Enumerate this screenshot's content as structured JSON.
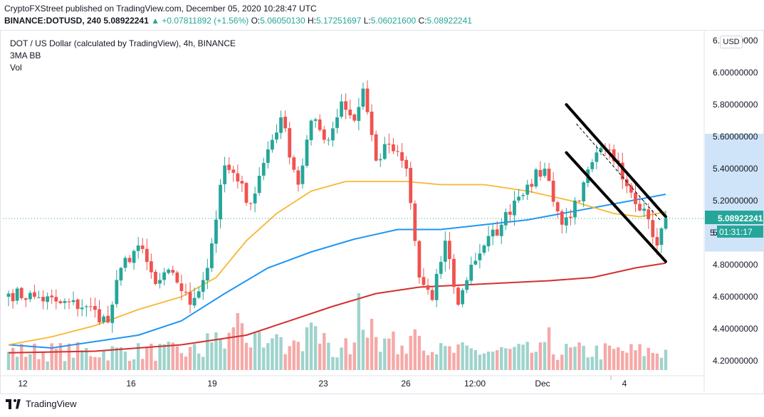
{
  "header": {
    "line1": "CryptoFXStreet published on TradingView.com, December 05, 2020 10:28:47 UTC",
    "symbol": "BINANCE:DOTUSD, 240",
    "last": "5.08922241",
    "change": "+0.07811892 (+1.56%)",
    "o_label": "O:",
    "o": "5.06050130",
    "h_label": "H:",
    "h": "5.17251697",
    "l_label": "L:",
    "l": "5.06021600",
    "c_label": "C:",
    "c": "5.08922241"
  },
  "legend": {
    "title": "DOT / US Dollar (calculated by TradingView), 4h, BINANCE",
    "ind1": "3MA BB",
    "ind2": "Vol"
  },
  "usd_button": "USD",
  "price_tag": {
    "price": "5.08922241",
    "countdown": "01:31:17",
    "hidden_label": "5."
  },
  "footer": {
    "brand": "TradingView"
  },
  "colors": {
    "up": "#26a69a",
    "down": "#ef5350",
    "ma_fast": "#f7b731",
    "ma_mid": "#2196f3",
    "ma_slow": "#d32f2f",
    "vol_up": "#9fd3cc",
    "vol_down": "#f5a9a7",
    "band_highlight": "#cfe4f8"
  },
  "chart_data": {
    "type": "candlestick",
    "yaxis_ticks": [
      "6.20000000",
      "6.00000000",
      "5.80000000",
      "5.60000000",
      "5.40000000",
      "5.20000000",
      "5.00000000",
      "4.80000000",
      "4.60000000",
      "4.40000000",
      "4.20000000"
    ],
    "ylim": [
      4.1,
      6.3
    ],
    "xaxis_ticks": [
      "12",
      "16",
      "19",
      "23",
      "26",
      "12:00",
      "Dec",
      "4"
    ],
    "anchors": [
      {
        "i": 0,
        "p": 4.62
      },
      {
        "i": 6,
        "p": 4.6
      },
      {
        "i": 12,
        "p": 4.56
      },
      {
        "i": 18,
        "p": 4.54
      },
      {
        "i": 23,
        "p": 4.44
      },
      {
        "i": 26,
        "p": 4.78
      },
      {
        "i": 30,
        "p": 4.92
      },
      {
        "i": 34,
        "p": 4.68
      },
      {
        "i": 38,
        "p": 4.75
      },
      {
        "i": 42,
        "p": 4.55
      },
      {
        "i": 46,
        "p": 4.78
      },
      {
        "i": 50,
        "p": 5.42
      },
      {
        "i": 53,
        "p": 5.32
      },
      {
        "i": 56,
        "p": 5.18
      },
      {
        "i": 60,
        "p": 5.52
      },
      {
        "i": 63,
        "p": 5.72
      },
      {
        "i": 67,
        "p": 5.3
      },
      {
        "i": 70,
        "p": 5.7
      },
      {
        "i": 74,
        "p": 5.58
      },
      {
        "i": 77,
        "p": 5.82
      },
      {
        "i": 80,
        "p": 5.7
      },
      {
        "i": 82,
        "p": 5.9
      },
      {
        "i": 85,
        "p": 5.45
      },
      {
        "i": 88,
        "p": 5.55
      },
      {
        "i": 92,
        "p": 5.4
      },
      {
        "i": 95,
        "p": 4.72
      },
      {
        "i": 98,
        "p": 4.58
      },
      {
        "i": 101,
        "p": 4.95
      },
      {
        "i": 104,
        "p": 4.55
      },
      {
        "i": 107,
        "p": 4.8
      },
      {
        "i": 110,
        "p": 4.92
      },
      {
        "i": 114,
        "p": 5.05
      },
      {
        "i": 117,
        "p": 5.2
      },
      {
        "i": 120,
        "p": 5.3
      },
      {
        "i": 124,
        "p": 5.4
      },
      {
        "i": 128,
        "p": 5.05
      },
      {
        "i": 132,
        "p": 5.2
      },
      {
        "i": 135,
        "p": 5.44
      },
      {
        "i": 138,
        "p": 5.52
      },
      {
        "i": 141,
        "p": 5.44
      },
      {
        "i": 144,
        "p": 5.25
      },
      {
        "i": 147,
        "p": 5.15
      },
      {
        "i": 150,
        "p": 4.92
      },
      {
        "i": 152,
        "p": 5.09
      }
    ],
    "candle_count": 153,
    "volume_spikes": [
      {
        "i": 53,
        "v": 1.0
      },
      {
        "i": 81,
        "v": 1.35
      },
      {
        "i": 84,
        "v": 0.9
      },
      {
        "i": 95,
        "v": 0.6
      },
      {
        "i": 125,
        "v": 0.75
      }
    ],
    "ma50": [
      [
        0,
        4.3
      ],
      [
        10,
        4.35
      ],
      [
        20,
        4.42
      ],
      [
        30,
        4.52
      ],
      [
        40,
        4.6
      ],
      [
        48,
        4.72
      ],
      [
        55,
        4.95
      ],
      [
        62,
        5.12
      ],
      [
        70,
        5.26
      ],
      [
        78,
        5.32
      ],
      [
        85,
        5.32
      ],
      [
        92,
        5.32
      ],
      [
        100,
        5.3
      ],
      [
        110,
        5.3
      ],
      [
        120,
        5.26
      ],
      [
        130,
        5.2
      ],
      [
        140,
        5.12
      ],
      [
        146,
        5.1
      ],
      [
        152,
        5.13
      ]
    ],
    "ma100": [
      [
        0,
        4.3
      ],
      [
        10,
        4.28
      ],
      [
        20,
        4.32
      ],
      [
        30,
        4.36
      ],
      [
        40,
        4.45
      ],
      [
        50,
        4.62
      ],
      [
        60,
        4.78
      ],
      [
        70,
        4.88
      ],
      [
        80,
        4.96
      ],
      [
        90,
        5.02
      ],
      [
        100,
        5.02
      ],
      [
        110,
        5.05
      ],
      [
        120,
        5.08
      ],
      [
        130,
        5.13
      ],
      [
        140,
        5.18
      ],
      [
        146,
        5.21
      ],
      [
        152,
        5.24
      ]
    ],
    "ma200": [
      [
        0,
        4.25
      ],
      [
        20,
        4.26
      ],
      [
        40,
        4.3
      ],
      [
        55,
        4.36
      ],
      [
        65,
        4.45
      ],
      [
        75,
        4.54
      ],
      [
        85,
        4.62
      ],
      [
        95,
        4.66
      ],
      [
        110,
        4.68
      ],
      [
        125,
        4.7
      ],
      [
        135,
        4.72
      ],
      [
        145,
        4.78
      ],
      [
        152,
        4.81
      ]
    ],
    "channel": {
      "upper": [
        [
          130,
          5.8
        ],
        [
          152,
          5.1
        ]
      ],
      "lower": [
        [
          130,
          5.5
        ],
        [
          152,
          4.82
        ]
      ],
      "dashed": [
        [
          132,
          5.68
        ],
        [
          151,
          5.07
        ]
      ]
    }
  }
}
